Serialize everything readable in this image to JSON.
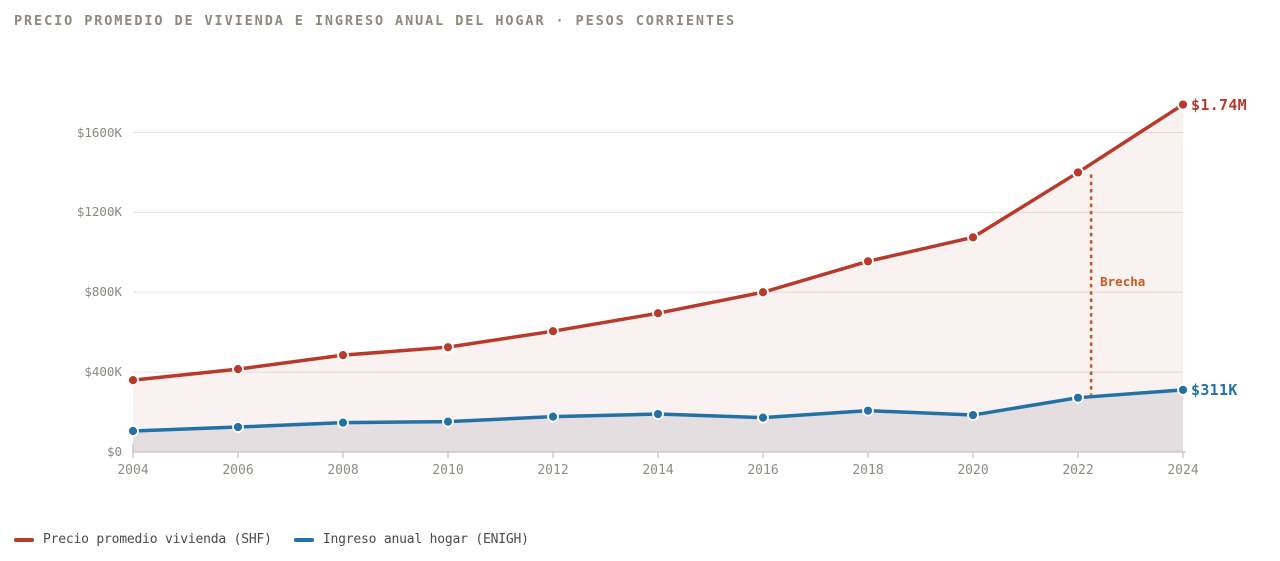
{
  "header": {
    "title": "PRECIO PROMEDIO DE VIVIENDA E INGRESO ANUAL DEL HOGAR · PESOS CORRIENTES"
  },
  "chart_data": {
    "type": "line",
    "title": "PRECIO PROMEDIO DE VIVIENDA E INGRESO ANUAL DEL HOGAR · PESOS CORRIENTES",
    "x_years": [
      2004,
      2006,
      2008,
      2010,
      2012,
      2014,
      2016,
      2018,
      2020,
      2022,
      2024
    ],
    "x_tick_labels": [
      "2004",
      "2006",
      "2008",
      "2010",
      "2012",
      "2014",
      "2016",
      "2018",
      "2020",
      "2022",
      "2024"
    ],
    "y_ticks": [
      {
        "k": 0,
        "label": "$0"
      },
      {
        "k": 400,
        "label": "$400K"
      },
      {
        "k": 800,
        "label": "$800K"
      },
      {
        "k": 1200,
        "label": "$1200K"
      },
      {
        "k": 1600,
        "label": "$1600K"
      }
    ],
    "ylim_thousands": [
      0,
      1800
    ],
    "grid": true,
    "legend_position": "bottom-left",
    "series": [
      {
        "name": "precio-vivienda-shf",
        "legend_label": "Precio promedio vivienda (SHF)",
        "color": "#b93a2b",
        "area_fill": "rgba(185,58,43,0.065)",
        "values_thousands": [
          360,
          415,
          485,
          525,
          605,
          695,
          800,
          955,
          1075,
          1400,
          1740
        ],
        "end_label": "$1.74M"
      },
      {
        "name": "ingreso-hogar-enigh",
        "legend_label": "Ingreso anual hogar (ENIGH)",
        "color": "#2471a6",
        "area_fill": "rgba(85,90,115,0.13)",
        "values_thousands": [
          105,
          125,
          147,
          152,
          177,
          190,
          172,
          207,
          185,
          272,
          311
        ],
        "end_label": "$311K"
      }
    ],
    "annotation": {
      "label": "Brecha",
      "color": "#c65a1e",
      "x_year": 2022.25,
      "from_thousands": 1390,
      "to_thousands": 287,
      "label_y_thousands": 885
    },
    "axis": {
      "grid_color": "#e7e3de",
      "baseline_color": "#c6c1b8",
      "tick_label_color": "#8f8c86"
    }
  }
}
